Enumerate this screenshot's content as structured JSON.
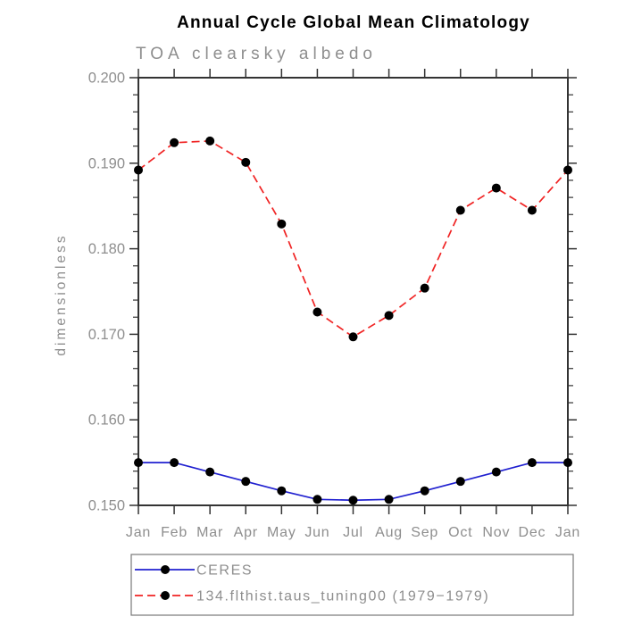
{
  "colors": {
    "background": "#ffffff",
    "axis": "#333333",
    "gray_text": "#8e8e8e",
    "title_text": "#000000",
    "ceres_blue": "#2020d0",
    "model_red": "#f02323",
    "marker_black": "#000000",
    "legend_border": "#777777"
  },
  "chart_data": {
    "type": "line",
    "title": "Annual Cycle Global Mean Climatology",
    "subtitle": "TOA clearsky albedo",
    "ylabel": "dimensionless",
    "xlabel": "",
    "x_categories": [
      "Jan",
      "Feb",
      "Mar",
      "Apr",
      "May",
      "Jun",
      "Jul",
      "Aug",
      "Sep",
      "Oct",
      "Nov",
      "Dec",
      "Jan"
    ],
    "ylim": [
      0.15,
      0.2
    ],
    "ytick_major_step": 0.01,
    "ytick_minor_step": 0.002,
    "ytick_labels": [
      "0.150",
      "0.160",
      "0.170",
      "0.180",
      "0.190",
      "0.200"
    ],
    "grid": "off",
    "legend_position": "bottom",
    "series": [
      {
        "name": "CERES",
        "line_style": "solid",
        "color": "#2020d0",
        "marker": "black-dot",
        "values": [
          0.155,
          0.155,
          0.1539,
          0.1528,
          0.1517,
          0.1507,
          0.1506,
          0.1507,
          0.1517,
          0.1528,
          0.1539,
          0.155,
          0.155
        ]
      },
      {
        "name": "134.flthist.taus_tuning00 (1979−1979)",
        "line_style": "dashed",
        "color": "#f02323",
        "marker": "black-dot",
        "values": [
          0.1892,
          0.1924,
          0.1926,
          0.1901,
          0.1829,
          0.1726,
          0.1697,
          0.1722,
          0.1754,
          0.1845,
          0.1871,
          0.1845,
          0.1892
        ]
      }
    ]
  }
}
